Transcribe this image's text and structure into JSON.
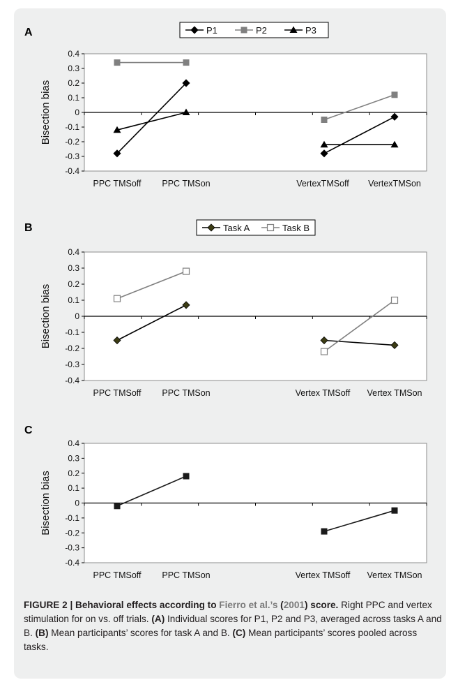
{
  "chart_data": [
    {
      "panel": "A",
      "type": "line",
      "ylabel": "Bisection bias",
      "ylim": [
        -0.4,
        0.4
      ],
      "yticks": [
        "0.4",
        "0.3",
        "0.2",
        "0.1",
        "0",
        "-0.1",
        "-0.2",
        "-0.3",
        "-0.4"
      ],
      "categories": [
        "PPC TMSoff",
        "PPC TMSon",
        "",
        "",
        "VertexTMSoff",
        "VertexTMSon"
      ],
      "legend": "top-center",
      "series": [
        {
          "name": "P1",
          "color": "#000000",
          "marker": "diamond",
          "segments": [
            [
              0,
              1
            ],
            [
              4,
              5
            ]
          ],
          "values": [
            -0.28,
            0.2,
            null,
            null,
            -0.28,
            -0.03
          ]
        },
        {
          "name": "P2",
          "color": "#808080",
          "marker": "square",
          "segments": [
            [
              0,
              1
            ],
            [
              4,
              5
            ]
          ],
          "values": [
            0.34,
            0.34,
            null,
            null,
            -0.05,
            0.12
          ]
        },
        {
          "name": "P3",
          "color": "#000000",
          "marker": "triangle",
          "segments": [
            [
              0,
              1
            ],
            [
              4,
              5
            ]
          ],
          "values": [
            -0.12,
            0.0,
            null,
            null,
            -0.22,
            -0.22
          ]
        }
      ]
    },
    {
      "panel": "B",
      "type": "line",
      "ylabel": "Bisection bias",
      "ylim": [
        -0.4,
        0.4
      ],
      "yticks": [
        "0.4",
        "0.3",
        "0.2",
        "0.1",
        "0",
        "-0.1",
        "-0.2",
        "-0.3",
        "-0.4"
      ],
      "categories": [
        "PPC TMSoff",
        "PPC TMSon",
        "",
        "",
        "Vertex TMSoff",
        "Vertex TMSon"
      ],
      "legend": "top-center",
      "series": [
        {
          "name": "Task A",
          "color": "#000000",
          "marker": "diamond",
          "fill": "#3c3c14",
          "segments": [
            [
              0,
              1
            ],
            [
              4,
              5
            ]
          ],
          "values": [
            -0.15,
            0.07,
            null,
            null,
            -0.15,
            -0.18
          ]
        },
        {
          "name": "Task B",
          "color": "#808080",
          "marker": "square-open",
          "segments": [
            [
              0,
              1
            ],
            [
              4,
              5
            ]
          ],
          "values": [
            0.11,
            0.28,
            null,
            null,
            -0.22,
            0.1
          ]
        }
      ]
    },
    {
      "panel": "C",
      "type": "line",
      "ylabel": "Bisection bias",
      "ylim": [
        -0.4,
        0.4
      ],
      "yticks": [
        "0.4",
        "0.3",
        "0.2",
        "0.1",
        "0",
        "-0.1",
        "-0.2",
        "-0.3",
        "-0.4"
      ],
      "categories": [
        "PPC TMSoff",
        "PPC TMSon",
        "",
        "",
        "Vertex TMSoff",
        "Vertex TMSon"
      ],
      "legend": "none",
      "series": [
        {
          "color": "#1a1a1a",
          "marker": "square",
          "segments": [
            [
              0,
              1
            ],
            [
              4,
              5
            ]
          ],
          "values": [
            -0.02,
            0.18,
            null,
            null,
            -0.19,
            -0.05
          ]
        }
      ]
    }
  ],
  "caption": {
    "title_prefix": "FIGURE 2 | Behavioral effects according to ",
    "ref_name": "Fierro et al.’s",
    "ref_open": " (",
    "ref_year": "2001",
    "title_suffix": ") score.",
    "text": "Right PPC and vertex stimulation for on vs. off trials. ",
    "part_a_label": "(A)",
    "part_a_text": " Individual scores for P1, P2 and P3, averaged across tasks A and B. ",
    "part_b_label": "(B)",
    "part_b_text": " Mean participants’ scores for task A and B. ",
    "part_c_label": "(C)",
    "part_c_text": " Mean participants’ scores pooled across tasks."
  }
}
